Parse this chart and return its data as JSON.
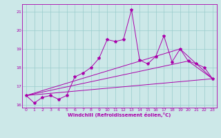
{
  "xlabel": "Windchill (Refroidissement éolien,°C)",
  "ylabel": "",
  "background_color": "#cce8e8",
  "line_color": "#aa00aa",
  "grid_color": "#99cccc",
  "xlim": [
    -0.5,
    23.5
  ],
  "ylim": [
    15.85,
    21.4
  ],
  "yticks": [
    16,
    17,
    18,
    19,
    20,
    21
  ],
  "xticks": [
    0,
    1,
    2,
    3,
    4,
    5,
    6,
    7,
    8,
    9,
    10,
    11,
    12,
    13,
    14,
    15,
    16,
    17,
    18,
    19,
    20,
    21,
    22,
    23
  ],
  "series": [
    {
      "x": [
        0,
        1,
        2,
        3,
        4,
        5,
        6,
        7,
        8,
        9,
        10,
        11,
        12,
        13,
        14,
        15,
        16,
        17,
        18,
        19,
        20,
        21,
        22,
        23
      ],
      "y": [
        16.5,
        16.1,
        16.4,
        16.5,
        16.3,
        16.5,
        17.5,
        17.7,
        18.0,
        18.5,
        19.5,
        19.4,
        19.5,
        21.1,
        18.4,
        18.2,
        18.6,
        19.7,
        18.3,
        19.0,
        18.35,
        18.2,
        18.0,
        17.4
      ],
      "has_markers": true
    },
    {
      "x": [
        0,
        23
      ],
      "y": [
        16.5,
        17.4
      ],
      "has_markers": false
    },
    {
      "x": [
        0,
        20,
        23
      ],
      "y": [
        16.5,
        18.35,
        17.4
      ],
      "has_markers": false
    },
    {
      "x": [
        0,
        19,
        23
      ],
      "y": [
        16.5,
        19.0,
        17.4
      ],
      "has_markers": false
    }
  ]
}
